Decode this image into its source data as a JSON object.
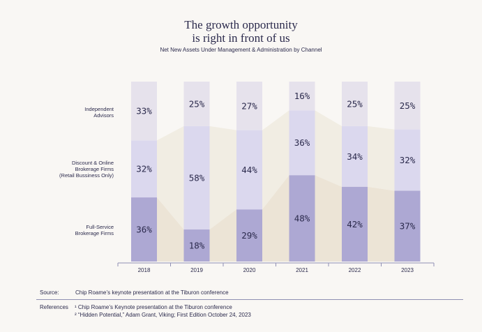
{
  "header": {
    "title_line1": "The growth opportunity",
    "title_line2": "is right in front of us",
    "subtitle": "Net New Assets Under Management & Administration by Channel"
  },
  "row_labels": [
    {
      "line1": "Independent",
      "line2": "Advisors",
      "line3": ""
    },
    {
      "line1": "Discount & Online",
      "line2": "Brokerage Firms",
      "line3": "(Retail Bussiness Only)"
    },
    {
      "line1": "Full-Service",
      "line2": "Brokerage Firms",
      "line3": ""
    }
  ],
  "chart_data": {
    "type": "bar",
    "stacked": true,
    "normalized": true,
    "title": "Net New Assets Under Management & Administration by Channel",
    "categories": [
      "2018",
      "2019",
      "2020",
      "2021",
      "2022",
      "2023"
    ],
    "series": [
      {
        "name": "Full-Service Brokerage Firms",
        "values": [
          36,
          18,
          29,
          48,
          42,
          37
        ],
        "labels": [
          "36%",
          "18%",
          "29%",
          "48%",
          "42%",
          "37%"
        ],
        "color": "#ada8d3"
      },
      {
        "name": "Discount & Online Brokerage Firms (Retail Bussiness Only)",
        "values": [
          32,
          58,
          44,
          36,
          34,
          32
        ],
        "labels": [
          "32%",
          "58%",
          "44%",
          "36%",
          "34%",
          "32%"
        ],
        "color": "#dbd8ee"
      },
      {
        "name": "Independent Advisors",
        "values": [
          33,
          25,
          27,
          16,
          25,
          25
        ],
        "labels": [
          "33%",
          "25%",
          "27%",
          "16%",
          "25%",
          "25%"
        ],
        "color": "#e6e2ec"
      }
    ],
    "ylim": [
      0,
      100
    ],
    "xlabel": "",
    "ylabel": ""
  },
  "footer": {
    "source_label": "Source:",
    "source_text": "Chip Roame’s keynote presentation at the Tiburon conference",
    "references_label": "References",
    "ref1": "¹ Chip Roame’s Keynote presentation at the Tiburon conference",
    "ref2": "² “Hidden Potential,” Adam Grant, Viking; First Edition October 24, 2023"
  }
}
